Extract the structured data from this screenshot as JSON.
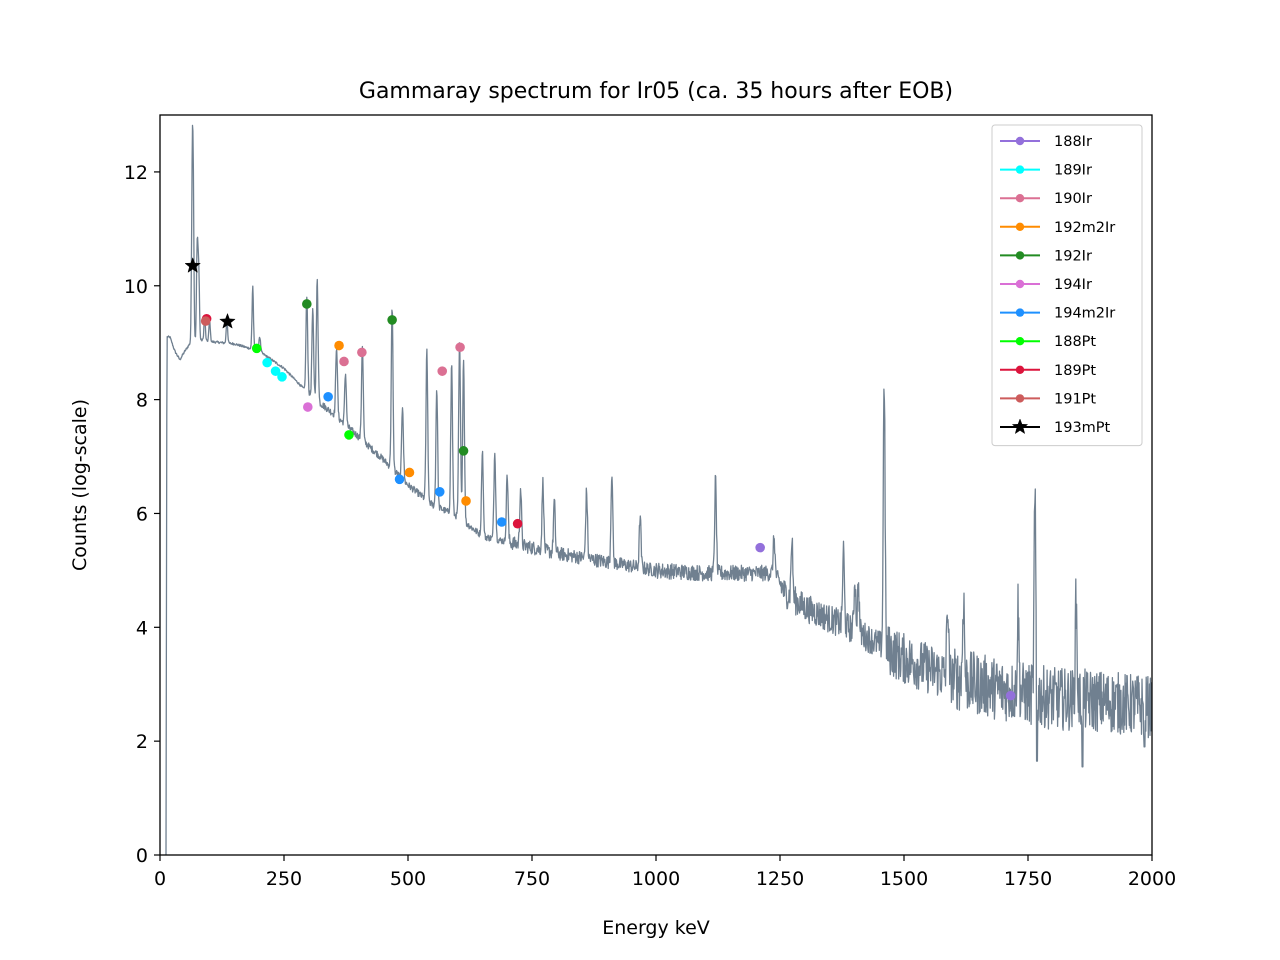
{
  "chart_data": {
    "type": "line",
    "title": "Gammaray spectrum for Ir05 (ca. 35 hours after EOB)",
    "xlabel": "Energy keV",
    "ylabel": "Counts (log-scale)",
    "xlim": [
      0,
      2000
    ],
    "ylim": [
      0,
      13
    ],
    "x_ticks": [
      0,
      250,
      500,
      750,
      1000,
      1250,
      1500,
      1750,
      2000
    ],
    "y_ticks": [
      0,
      2,
      4,
      6,
      8,
      10,
      12
    ],
    "grid": false,
    "legend_position": "top-right",
    "spectrum": {
      "color": "#708090",
      "continuum": [
        [
          12,
          0
        ],
        [
          14,
          9.1
        ],
        [
          20,
          9.1
        ],
        [
          30,
          8.85
        ],
        [
          40,
          8.7
        ],
        [
          50,
          8.85
        ],
        [
          60,
          8.98
        ],
        [
          80,
          9.05
        ],
        [
          100,
          9.02
        ],
        [
          150,
          8.98
        ],
        [
          200,
          8.85
        ],
        [
          250,
          8.55
        ],
        [
          300,
          8.1
        ],
        [
          350,
          7.75
        ],
        [
          400,
          7.35
        ],
        [
          450,
          6.95
        ],
        [
          500,
          6.5
        ],
        [
          550,
          6.15
        ],
        [
          600,
          5.95
        ],
        [
          650,
          5.6
        ],
        [
          700,
          5.5
        ],
        [
          750,
          5.4
        ],
        [
          800,
          5.3
        ],
        [
          900,
          5.15
        ],
        [
          1000,
          5.0
        ],
        [
          1100,
          4.95
        ],
        [
          1200,
          4.95
        ],
        [
          1240,
          4.95
        ],
        [
          1260,
          4.6
        ],
        [
          1300,
          4.35
        ],
        [
          1400,
          3.95
        ],
        [
          1460,
          3.65
        ],
        [
          1500,
          3.45
        ],
        [
          1600,
          3.1
        ],
        [
          1700,
          2.9
        ],
        [
          1800,
          2.75
        ],
        [
          1900,
          2.7
        ],
        [
          2000,
          2.6
        ]
      ],
      "peaks": [
        [
          15,
          1.2
        ],
        [
          65,
          11.65
        ],
        [
          67,
          11.3
        ],
        [
          75,
          10.7
        ],
        [
          78,
          10.3
        ],
        [
          90,
          9.45
        ],
        [
          100,
          9.4
        ],
        [
          135,
          9.4
        ],
        [
          187,
          10.0
        ],
        [
          201,
          9.1
        ],
        [
          296,
          9.8
        ],
        [
          308,
          9.55
        ],
        [
          317,
          10.1
        ],
        [
          356,
          8.95
        ],
        [
          374,
          8.45
        ],
        [
          408,
          8.95
        ],
        [
          468,
          9.6
        ],
        [
          489,
          7.9
        ],
        [
          538,
          8.85
        ],
        [
          558,
          8.2
        ],
        [
          588,
          8.65
        ],
        [
          604,
          9.05
        ],
        [
          612,
          8.75
        ],
        [
          650,
          7.1
        ],
        [
          675,
          7.1
        ],
        [
          700,
          6.7
        ],
        [
          727,
          6.45
        ],
        [
          772,
          6.55
        ],
        [
          795,
          6.2
        ],
        [
          860,
          6.4
        ],
        [
          911,
          6.75
        ],
        [
          968,
          5.95
        ],
        [
          1120,
          6.6
        ],
        [
          1238,
          5.6
        ],
        [
          1274,
          5.55
        ],
        [
          1378,
          5.35
        ],
        [
          1401,
          4.85
        ],
        [
          1408,
          4.75
        ],
        [
          1460,
          8.45
        ],
        [
          1588,
          4.45
        ],
        [
          1620,
          4.6
        ],
        [
          1730,
          4.35
        ],
        [
          1764,
          6.15
        ],
        [
          1847,
          4.45
        ]
      ],
      "min_values": [
        [
          1768,
          1.65
        ],
        [
          1860,
          1.55
        ],
        [
          1985,
          1.9
        ]
      ]
    },
    "series": [
      {
        "name": "188Ir",
        "color": "#9370DB",
        "marker": "o",
        "points": [
          [
            1210,
            5.4
          ],
          [
            1715,
            2.8
          ]
        ]
      },
      {
        "name": "189Ir",
        "color": "#00FFFF",
        "marker": "o",
        "points": [
          [
            216,
            8.65
          ],
          [
            233,
            8.5
          ],
          [
            246,
            8.4
          ]
        ]
      },
      {
        "name": "190Ir",
        "color": "#DB7093",
        "marker": "o",
        "points": [
          [
            371,
            8.67
          ],
          [
            407,
            8.83
          ],
          [
            569,
            8.5
          ],
          [
            605,
            8.92
          ]
        ]
      },
      {
        "name": "192m2Ir",
        "color": "#FF8C00",
        "marker": "o",
        "points": [
          [
            361,
            8.95
          ],
          [
            503,
            6.72
          ],
          [
            617,
            6.22
          ]
        ]
      },
      {
        "name": "192Ir",
        "color": "#228B22",
        "marker": "o",
        "points": [
          [
            296,
            9.68
          ],
          [
            468,
            9.4
          ],
          [
            612,
            7.1
          ]
        ]
      },
      {
        "name": "194Ir",
        "color": "#DA70D6",
        "marker": "o",
        "points": [
          [
            298,
            7.87
          ]
        ]
      },
      {
        "name": "194m2Ir",
        "color": "#1E90FF",
        "marker": "o",
        "points": [
          [
            339,
            8.05
          ],
          [
            483,
            6.6
          ],
          [
            564,
            6.38
          ],
          [
            689,
            5.85
          ]
        ]
      },
      {
        "name": "188Pt",
        "color": "#00FF00",
        "marker": "o",
        "points": [
          [
            195,
            8.9
          ],
          [
            381,
            7.38
          ]
        ]
      },
      {
        "name": "189Pt",
        "color": "#DC143C",
        "marker": "o",
        "points": [
          [
            94,
            9.42
          ],
          [
            721,
            5.82
          ]
        ]
      },
      {
        "name": "191Pt",
        "color": "#CD5C5C",
        "marker": "o",
        "points": [
          [
            92,
            9.38
          ]
        ]
      },
      {
        "name": "193mPt",
        "color": "#000000",
        "marker": "*",
        "points": [
          [
            66,
            10.35
          ],
          [
            136,
            9.37
          ]
        ]
      }
    ]
  }
}
